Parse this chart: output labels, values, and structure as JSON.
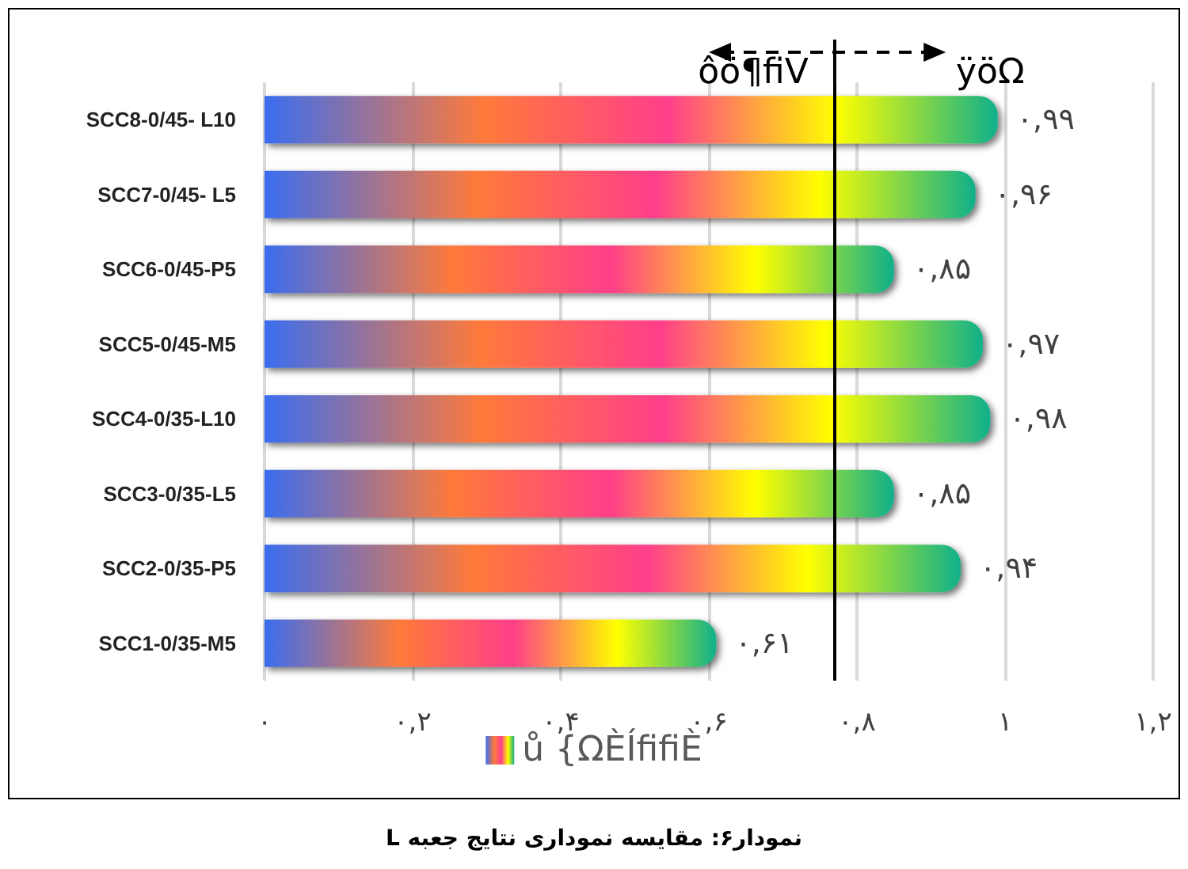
{
  "chart_data": {
    "type": "bar",
    "orientation": "horizontal",
    "title": "نمودار۶: مقایسه نموداری نتایج جعبه L",
    "categories": [
      "SCC8-0/45- L10",
      "SCC7-0/45- L5",
      "SCC6-0/45-P5",
      "SCC5-0/45-M5",
      "SCC4-0/35-L10",
      "SCC3-0/35-L5",
      "SCC2-0/35-P5",
      "SCC1-0/35-M5"
    ],
    "series": [
      {
        "name": "ů {ΩÈÍfifiÈ",
        "color": "#3a6df0",
        "values": [
          0.99,
          0.96,
          0.85,
          0.97,
          0.98,
          0.85,
          0.94,
          0.61
        ],
        "value_labels": [
          "۰,۹۹",
          "۰,۹۶",
          "۰,۸۵",
          "۰,۹۷",
          "۰,۹۸",
          "۰,۸۵",
          "۰,۹۴",
          "۰,۶۱"
        ]
      }
    ],
    "xlim": [
      0,
      1.2
    ],
    "xticks": [
      {
        "value": 0,
        "label": "۰"
      },
      {
        "value": 0.2,
        "label": "۰,۲"
      },
      {
        "value": 0.4,
        "label": "۰,۴"
      },
      {
        "value": 0.6,
        "label": "۰,۶"
      },
      {
        "value": 0.8,
        "label": "۰,۸"
      },
      {
        "value": 1,
        "label": "۱"
      },
      {
        "value": 1.2,
        "label": "۱,۲"
      }
    ],
    "grid": "x",
    "legend": "bottom",
    "ref_lines": [
      {
        "axis": "x",
        "value": 0.77,
        "color": "#000000"
      }
    ],
    "annotations": [
      "ôö¶fiV",
      "ÿöΩ"
    ]
  }
}
